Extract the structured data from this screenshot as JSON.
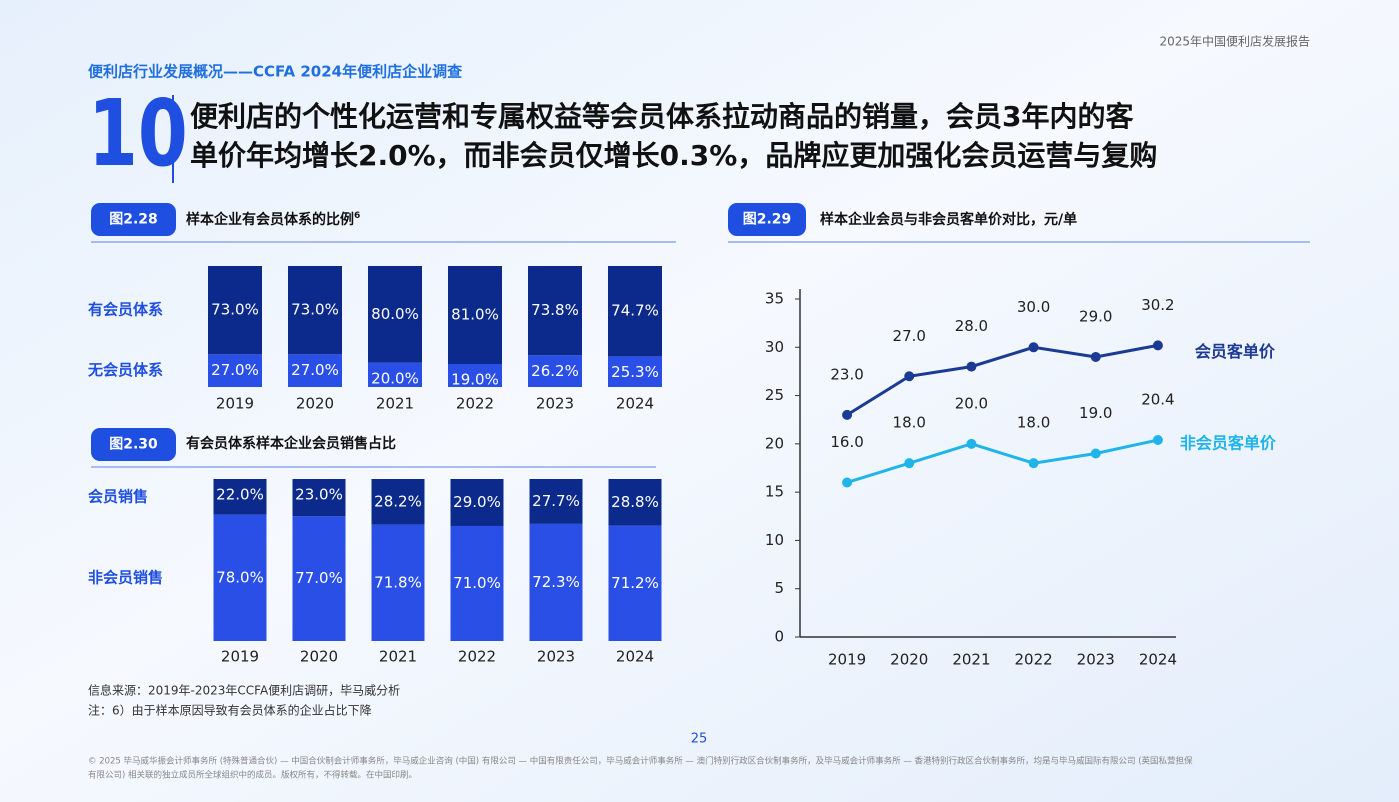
{
  "header": {
    "report": "2025年中国便利店发展报告",
    "section": "便利店行业发展概况——CCFA 2024年便利店企业调查",
    "number": "10",
    "title_lines": [
      "便利店的个性化运营和专属权益等会员体系拉动商品的销量，会员3年内的客",
      "单价年均增长2.0%，而非会员仅增长0.3%，品牌应更加强化会员运营与复购"
    ]
  },
  "chart_data": [
    {
      "type": "stacked_bar",
      "figure": "图2.28",
      "title": "样本企业有会员体系的比例",
      "title_note": "6",
      "categories": [
        "2019",
        "2020",
        "2021",
        "2022",
        "2023",
        "2024"
      ],
      "series": [
        {
          "name": "有会员体系",
          "color": "#0b2a8c",
          "values": [
            73.0,
            73.0,
            80.0,
            81.0,
            73.8,
            74.7
          ],
          "value_labels": [
            "73.0%",
            "73.0%",
            "80.0%",
            "81.0%",
            "73.8%",
            "74.7%"
          ]
        },
        {
          "name": "无会员体系",
          "color": "#2a4fe6",
          "values": [
            27.0,
            27.0,
            20.0,
            19.0,
            26.2,
            25.3
          ],
          "value_labels": [
            "27.0%",
            "27.0%",
            "20.0%",
            "19.0%",
            "26.2%",
            "25.3%"
          ]
        }
      ]
    },
    {
      "type": "stacked_bar",
      "figure": "图2.30",
      "title": "有会员体系样本企业会员销售占比",
      "categories": [
        "2019",
        "2020",
        "2021",
        "2022",
        "2023",
        "2024"
      ],
      "series": [
        {
          "name": "会员销售",
          "color": "#0b2a8c",
          "values": [
            22.0,
            23.0,
            28.2,
            29.0,
            27.7,
            28.8
          ],
          "value_labels": [
            "22.0%",
            "23.0%",
            "28.2%",
            "29.0%",
            "27.7%",
            "28.8%"
          ]
        },
        {
          "name": "非会员销售",
          "color": "#2a4fe6",
          "values": [
            78.0,
            77.0,
            71.8,
            71.0,
            72.3,
            71.2
          ],
          "value_labels": [
            "78.0%",
            "77.0%",
            "71.8%",
            "71.0%",
            "72.3%",
            "71.2%"
          ]
        }
      ]
    },
    {
      "type": "line",
      "figure": "图2.29",
      "title": "样本企业会员与非会员客单价对比，元/单",
      "categories": [
        "2019",
        "2020",
        "2021",
        "2022",
        "2023",
        "2024"
      ],
      "ylim": [
        0,
        35
      ],
      "yticks": [
        0,
        5,
        10,
        15,
        20,
        25,
        30,
        35
      ],
      "series": [
        {
          "name": "会员客单价",
          "color": "#1b3a94",
          "values": [
            23.0,
            27.0,
            28.0,
            30.0,
            29.0,
            30.2
          ],
          "value_labels": [
            "23.0",
            "27.0",
            "28.0",
            "30.0",
            "29.0",
            "30.2"
          ]
        },
        {
          "name": "非会员客单价",
          "color": "#1fb4ea",
          "values": [
            16.0,
            18.0,
            20.0,
            18.0,
            19.0,
            20.4
          ],
          "value_labels": [
            "16.0",
            "18.0",
            "20.0",
            "18.0",
            "19.0",
            "20.4"
          ]
        }
      ]
    }
  ],
  "footer": {
    "source": "信息来源：2019年-2023年CCFA便利店调研，毕马威分析",
    "note": "注：6）由于样本原因导致有会员体系的企业占比下降",
    "page": "25",
    "copyright": [
      "© 2025 毕马威华振会计师事务所 (特殊普通合伙) — 中国合伙制会计师事务所，毕马威企业咨询 (中国) 有限公司 — 中国有限责任公司，毕马威会计师事务所 — 澳门特别行政区合伙制事务所，及毕马威会计师事务所 — 香港特别行政区合伙制事务所，均是与毕马威国际有限公司 (英国私营担保",
      "有限公司) 相关联的独立成员所全球组织中的成员。版权所有，不得转载。在中国印刷。"
    ]
  }
}
